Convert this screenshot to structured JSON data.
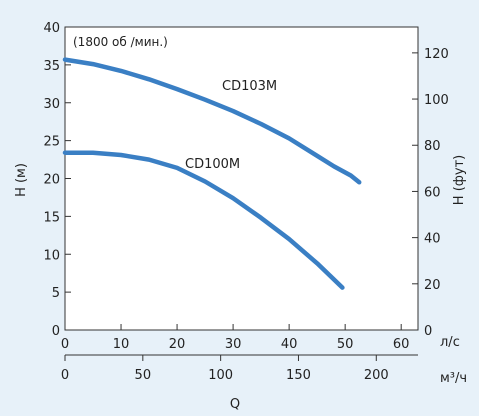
{
  "chart_data": {
    "type": "line",
    "note": "(1800 об /мин.)",
    "y_left": {
      "label": "H (м)",
      "lim": [
        0,
        40
      ],
      "ticks": [
        0,
        5,
        10,
        15,
        20,
        25,
        30,
        35,
        40
      ]
    },
    "y_right": {
      "label": "H (фут)",
      "lim": [
        0,
        131.2
      ],
      "ticks": [
        0,
        20,
        40,
        60,
        80,
        100,
        120
      ]
    },
    "x_top": {
      "unit": "л/с",
      "lim": [
        0,
        63
      ],
      "ticks": [
        0,
        10,
        20,
        30,
        40,
        50,
        60
      ]
    },
    "x_bottom": {
      "unit": "м³/ч",
      "lim": [
        0,
        226.8
      ],
      "ticks": [
        0,
        50,
        100,
        150,
        200
      ]
    },
    "xlabel": "Q",
    "series": [
      {
        "name": "CD103M",
        "color": "#3a7fc4",
        "x": [
          0,
          5,
          10,
          15,
          20,
          25,
          30,
          35,
          40,
          45,
          48,
          51,
          52.5
        ],
        "y": [
          35.7,
          35.1,
          34.2,
          33.1,
          31.8,
          30.4,
          28.9,
          27.2,
          25.3,
          23.0,
          21.6,
          20.4,
          19.5
        ]
      },
      {
        "name": "CD100M",
        "color": "#3a7fc4",
        "x": [
          0,
          5,
          10,
          15,
          20,
          25,
          30,
          35,
          40,
          45,
          49.5
        ],
        "y": [
          23.4,
          23.4,
          23.1,
          22.5,
          21.4,
          19.6,
          17.4,
          14.8,
          12.0,
          8.8,
          5.6
        ]
      }
    ]
  }
}
